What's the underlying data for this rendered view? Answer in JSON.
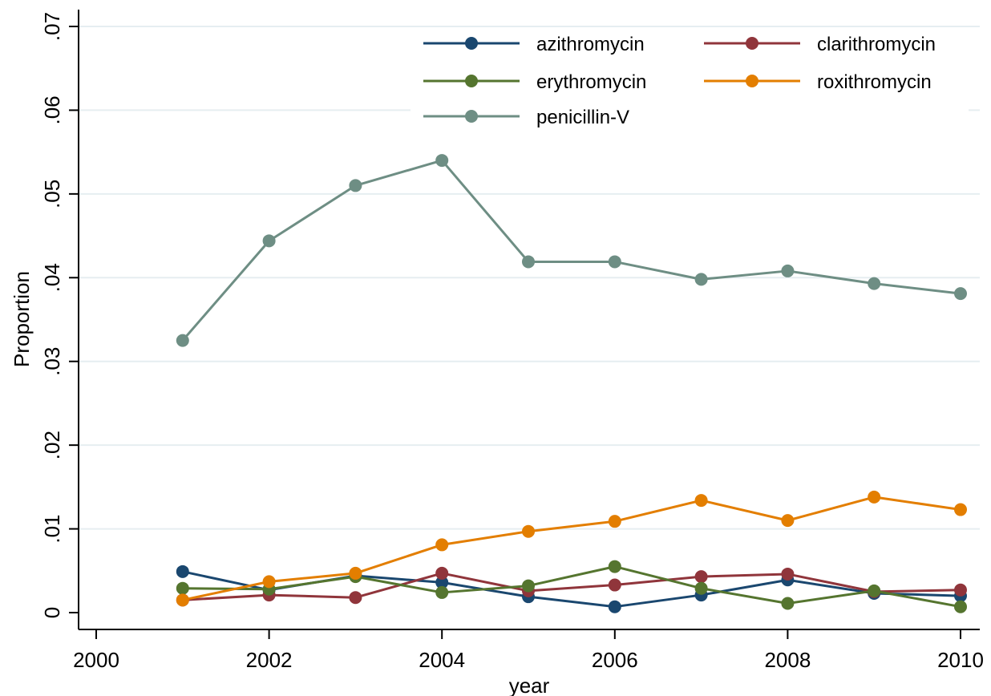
{
  "chart_data": {
    "type": "line",
    "title": "",
    "xlabel": "year",
    "ylabel": "Proportion",
    "xlim": [
      2000,
      2010
    ],
    "ylim": [
      0,
      0.07
    ],
    "x_ticks": [
      2000,
      2002,
      2004,
      2006,
      2008,
      2010
    ],
    "x_tick_labels": [
      "2000",
      "2002",
      "2004",
      "2006",
      "2008",
      "2010"
    ],
    "y_ticks": [
      0,
      0.01,
      0.02,
      0.03,
      0.04,
      0.05,
      0.06,
      0.07
    ],
    "y_tick_labels": [
      "0",
      ".01",
      ".02",
      ".03",
      ".04",
      ".05",
      ".06",
      ".07"
    ],
    "grid": "horizontal",
    "legend_position": "top-right",
    "x": [
      2001,
      2002,
      2003,
      2004,
      2005,
      2006,
      2007,
      2008,
      2009,
      2010
    ],
    "series": [
      {
        "name": "azithromycin",
        "color": "#1a476f",
        "values": [
          0.0049,
          0.0027,
          0.0044,
          0.0036,
          0.0019,
          0.0007,
          0.0021,
          0.0039,
          0.0023,
          0.002
        ]
      },
      {
        "name": "clarithromycin",
        "color": "#90353b",
        "values": [
          0.0015,
          0.0021,
          0.0018,
          0.0047,
          0.0026,
          0.0033,
          0.0043,
          0.0046,
          0.0025,
          0.0027
        ]
      },
      {
        "name": "erythromycin",
        "color": "#55752f",
        "values": [
          0.0029,
          0.0028,
          0.0043,
          0.0024,
          0.0032,
          0.0055,
          0.0029,
          0.0011,
          0.0026,
          0.0007
        ]
      },
      {
        "name": "roxithromycin",
        "color": "#e37e00",
        "values": [
          0.0015,
          0.0037,
          0.0047,
          0.0081,
          0.0097,
          0.0109,
          0.0134,
          0.011,
          0.0138,
          0.0123
        ]
      },
      {
        "name": "penicillin-V",
        "color": "#6e8e84",
        "values": [
          0.0325,
          0.0444,
          0.051,
          0.054,
          0.0419,
          0.0419,
          0.0398,
          0.0408,
          0.0393,
          0.0381
        ]
      }
    ]
  }
}
